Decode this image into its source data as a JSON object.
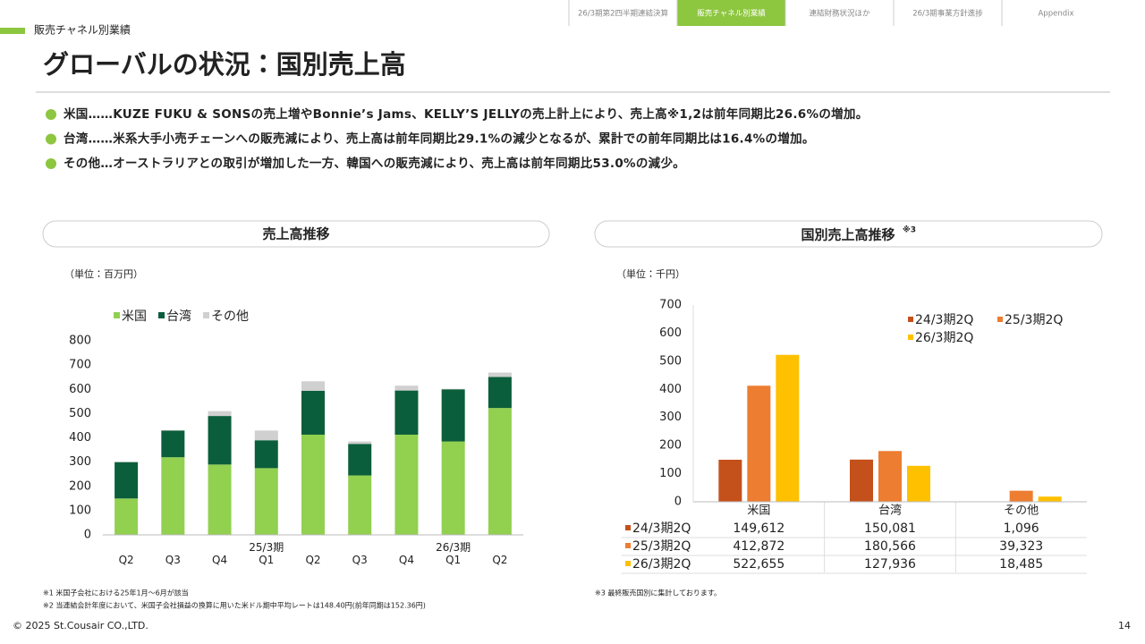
{
  "header": {
    "section": "販売チャネル別業績",
    "title": "グローバルの状況：国別売上高",
    "tabs": [
      "26/3期第2四半期連結決算",
      "販売チャネル別業績",
      "連結財務状況ほか",
      "26/3期事業方針進捗",
      "Appendix"
    ],
    "active_tab": 1
  },
  "bullets": [
    "米国……KUZE FUKU & SONSの売上増やBonnie’s Jams、KELLY’S JELLYの売上計上により、売上高※1,2は前年同期比26.6%の増加。",
    "台湾……米系大手小売チェーンへの販売減により、売上高は前年同期比29.1%の減少となるが、累計での前年同期比は16.4%の増加。",
    "その他…オーストラリアとの取引が増加した一方、韓国への販売減により、売上高は前年同期比53.0%の減少。"
  ],
  "chart_data": [
    {
      "type": "stacked_bar",
      "title": "売上高推移",
      "unit": "（単位：百万円）",
      "categories": [
        "Q2",
        "Q3",
        "Q4",
        "25/3期\nQ1",
        "Q2",
        "Q3",
        "Q4",
        "26/3期\nQ1",
        "Q2"
      ],
      "series": [
        {
          "name": "米国",
          "color": "#92d050",
          "values": [
            150,
            320,
            290,
            275,
            413,
            245,
            413,
            385,
            523
          ]
        },
        {
          "name": "台湾",
          "color": "#0b5e3b",
          "values": [
            150,
            110,
            200,
            115,
            181,
            130,
            182,
            215,
            128
          ]
        },
        {
          "name": "その他",
          "color": "#d0d0d0",
          "values": [
            1,
            2,
            20,
            40,
            39,
            10,
            20,
            2,
            18
          ]
        }
      ],
      "ylim": [
        0,
        800
      ],
      "yticks": [
        0,
        100,
        200,
        300,
        400,
        500,
        600,
        700,
        800
      ],
      "grid": false,
      "legend": "top-left"
    },
    {
      "type": "bar",
      "title": "国別売上高推移",
      "title_note": "※3",
      "unit": "（単位：千円）",
      "categories": [
        "米国",
        "台湾",
        "その他"
      ],
      "series": [
        {
          "name": "24/3期2Q",
          "color": "#c4501b",
          "values": [
            149.612,
            150.081,
            1.096
          ],
          "value_labels": [
            "149,612",
            "150,081",
            "1,096"
          ]
        },
        {
          "name": "25/3期2Q",
          "color": "#ed7d31",
          "values": [
            412.872,
            180.566,
            39.323
          ],
          "value_labels": [
            "412,872",
            "180,566",
            "39,323"
          ]
        },
        {
          "name": "26/3期2Q",
          "color": "#ffc000",
          "values": [
            522.655,
            127.936,
            18.485
          ],
          "value_labels": [
            "522,655",
            "127,936",
            "18,485"
          ]
        }
      ],
      "ylim": [
        0,
        700
      ],
      "yticks": [
        0,
        100,
        200,
        300,
        400,
        500,
        600,
        700
      ],
      "grid": false,
      "legend": "top-right"
    }
  ],
  "footnotes": {
    "left": [
      "※1 米国子会社における25年1月～6月が該当",
      "※2 当連結会計年度において、米国子会社損益の換算に用いた米ドル期中平均レートは148.40円(前年同期は152.36円)"
    ],
    "right": [
      "※3 最終販売国別に集計しております。"
    ]
  },
  "footer": {
    "copyright": "© 2025 St.Cousair CO.,LTD.",
    "page": "14"
  }
}
